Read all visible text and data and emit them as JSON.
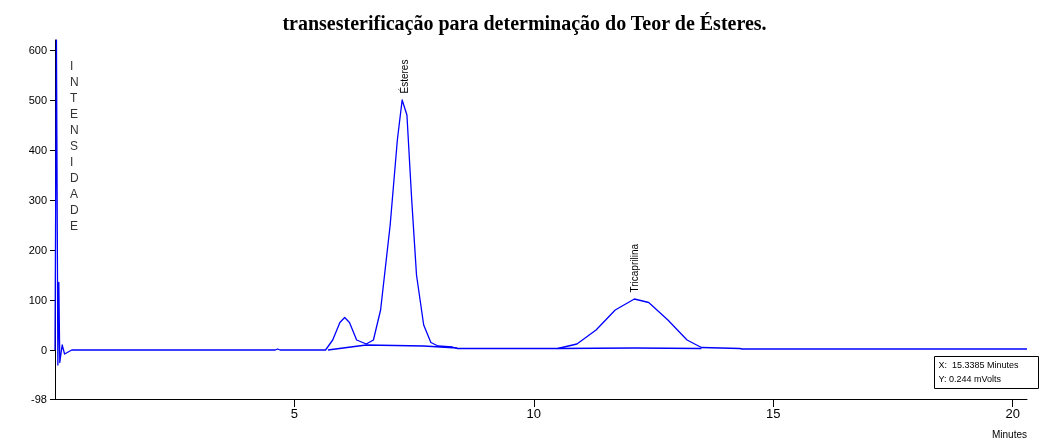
{
  "chart_data": {
    "type": "line",
    "title": "transesterificação para determinação do Teor de Ésteres.",
    "xlabel": "Minutes",
    "ylabel": "INTENSIDADE",
    "xlim": [
      0,
      20.3
    ],
    "ylim": [
      -98,
      620
    ],
    "xticks": [
      5,
      10,
      15,
      20
    ],
    "yticks": [
      -98,
      0,
      100,
      200,
      300,
      400,
      500,
      600
    ],
    "grid": false,
    "marker": "none",
    "line_style": "solid",
    "series": [
      {
        "color": "#0000ff",
        "x": [
          0,
          0.03,
          0.06,
          0.08,
          0.1,
          0.15,
          0.2,
          0.35,
          4.6,
          4.65,
          4.7,
          5.65,
          5.8,
          5.95,
          6.05,
          6.15,
          6.3,
          6.5,
          6.65,
          6.8,
          7.0,
          7.15,
          7.25,
          7.35,
          7.45,
          7.55,
          7.7,
          7.85,
          8.0,
          8.3,
          8.4,
          10.5,
          10.9,
          11.3,
          11.7,
          12.1,
          12.4,
          12.8,
          13.2,
          13.5,
          14.3,
          14.35,
          20.3
        ],
        "values": [
          0,
          620,
          -30,
          135,
          -25,
          10,
          -8,
          0,
          0,
          2,
          0,
          0,
          20,
          55,
          65,
          55,
          20,
          12,
          20,
          80,
          250,
          420,
          500,
          470,
          300,
          150,
          50,
          15,
          8,
          6,
          3,
          3,
          12,
          40,
          80,
          102,
          95,
          60,
          20,
          5,
          3,
          2,
          2
        ]
      },
      {
        "color": "#0000ff",
        "x": [
          5.7,
          6.5,
          7.7,
          8.4,
          9.5,
          10.5,
          12.1,
          13.5
        ],
        "values": [
          0,
          10,
          8,
          4,
          null,
          3,
          4,
          3
        ]
      }
    ],
    "annotations": [
      {
        "text": "Ésteres",
        "x": 7.3,
        "y": 500
      },
      {
        "text": "Tricaprilina",
        "x": 12.1,
        "y": 102
      },
      "X:  15.3385 Minutes",
      "Y: 0.244 mVolts"
    ]
  }
}
